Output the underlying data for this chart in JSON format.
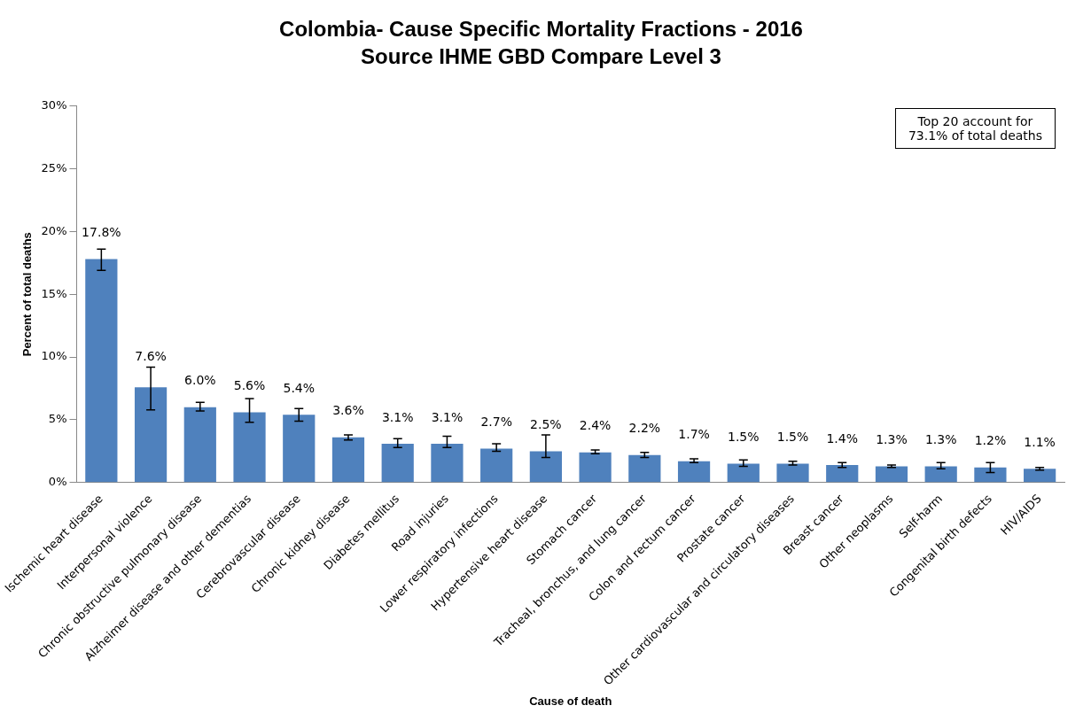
{
  "chart_data": {
    "type": "bar",
    "title": "Colombia- Cause Specific Mortality Fractions - 2016",
    "subtitle": "Source IHME GBD Compare Level 3",
    "xlabel": "Cause of death",
    "ylabel": "Percent of total deaths",
    "categories": [
      "Ischemic heart disease",
      "Interpersonal violence",
      "Chronic obstructive pulmonary disease",
      "Alzheimer disease and other dementias",
      "Cerebrovascular disease",
      "Chronic kidney disease",
      "Diabetes mellitus",
      "Road injuries",
      "Lower respiratory infections",
      "Hypertensive heart disease",
      "Stomach cancer",
      "Tracheal, bronchus, and lung cancer",
      "Colon and rectum cancer",
      "Prostate cancer",
      "Other cardiovascular and circulatory diseases",
      "Breast cancer",
      "Other neoplasms",
      "Self-harm",
      "Congenital birth defects",
      "HIV/AIDS"
    ],
    "values": [
      17.8,
      7.6,
      6.0,
      5.6,
      5.4,
      3.6,
      3.1,
      3.1,
      2.7,
      2.5,
      2.4,
      2.2,
      1.7,
      1.5,
      1.5,
      1.4,
      1.3,
      1.3,
      1.2,
      1.1
    ],
    "errors": [
      [
        16.9,
        18.6
      ],
      [
        5.8,
        9.2
      ],
      [
        5.7,
        6.4
      ],
      [
        4.8,
        6.7
      ],
      [
        4.9,
        5.9
      ],
      [
        3.4,
        3.8
      ],
      [
        2.8,
        3.5
      ],
      [
        2.8,
        3.7
      ],
      [
        2.5,
        3.1
      ],
      [
        2.0,
        3.8
      ],
      [
        2.3,
        2.6
      ],
      [
        2.0,
        2.4
      ],
      [
        1.6,
        1.9
      ],
      [
        1.3,
        1.8
      ],
      [
        1.4,
        1.7
      ],
      [
        1.2,
        1.6
      ],
      [
        1.2,
        1.4
      ],
      [
        1.1,
        1.6
      ],
      [
        0.8,
        1.6
      ],
      [
        1.0,
        1.2
      ]
    ],
    "value_labels": [
      "17.8%",
      "7.6%",
      "6.0%",
      "5.6%",
      "5.4%",
      "3.6%",
      "3.1%",
      "3.1%",
      "2.7%",
      "2.5%",
      "2.4%",
      "2.2%",
      "1.7%",
      "1.5%",
      "1.5%",
      "1.4%",
      "1.3%",
      "1.3%",
      "1.2%",
      "1.1%"
    ],
    "color": "#4f81bd",
    "ylim": [
      0,
      30
    ],
    "yticks": [
      {
        "value": 0,
        "label": "0%"
      },
      {
        "value": 5,
        "label": "5%"
      },
      {
        "value": 10,
        "label": "10%"
      },
      {
        "value": 15,
        "label": "15%"
      },
      {
        "value": 20,
        "label": "20%"
      },
      {
        "value": 25,
        "label": "25%"
      },
      {
        "value": 30,
        "label": "30%"
      }
    ],
    "grid": false,
    "annotations": [
      "Top 20 account for\n73.1% of total deaths"
    ]
  }
}
